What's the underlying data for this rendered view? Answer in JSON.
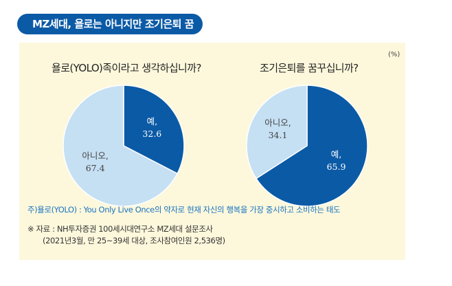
{
  "title": "MZ세대, 욜로는 아니지만 조기은퇴 꿈꿔",
  "unit": "(%)",
  "colors": {
    "dark": "#0b5aa6",
    "light": "#c5dff3",
    "bg": "#fdf8dc"
  },
  "chart_data": [
    {
      "type": "pie",
      "title": "욜로(YOLO)족이라고 생각하십니까?",
      "slices": [
        {
          "label": "예,",
          "value": 32.6
        },
        {
          "label": "아니오,",
          "value": 67.4
        }
      ]
    },
    {
      "type": "pie",
      "title": "조기은퇴를 꿈꾸십니까?",
      "slices": [
        {
          "label": "예,",
          "value": 65.9
        },
        {
          "label": "아니오,",
          "value": 34.1
        }
      ]
    }
  ],
  "footnote": "주)욜로(YOLO) : You Only Live Once의 약자로 현재 자신의 행복을 가장 중시하고 소비하는 태도",
  "source_line1": "※ 자료 : NH투자증권 100세시대연구소 MZ세대 설문조사",
  "source_line2": "(2021년3월, 만 25~39세 대상, 조사참여인원 2,536명)"
}
